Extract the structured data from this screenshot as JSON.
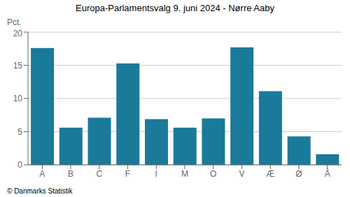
{
  "chart_data": {
    "type": "bar",
    "title": "Europa-Parlamentsvalg 9. juni 2024 - Nørre Aaby",
    "ylabel": "Pct.",
    "annotations": [
      "© Danmarks Statistik"
    ],
    "categories": [
      "A",
      "B",
      "C",
      "F",
      "I",
      "M",
      "O",
      "V",
      "Æ",
      "Ø",
      "Å"
    ],
    "values": [
      17.6,
      5.6,
      7.1,
      15.3,
      6.9,
      5.6,
      7.0,
      17.7,
      11.1,
      4.3,
      1.6
    ],
    "color": "#1a7a9a",
    "ylim": [
      0,
      20
    ],
    "yticks": [
      0,
      5,
      10,
      15,
      20
    ],
    "grid": true
  }
}
